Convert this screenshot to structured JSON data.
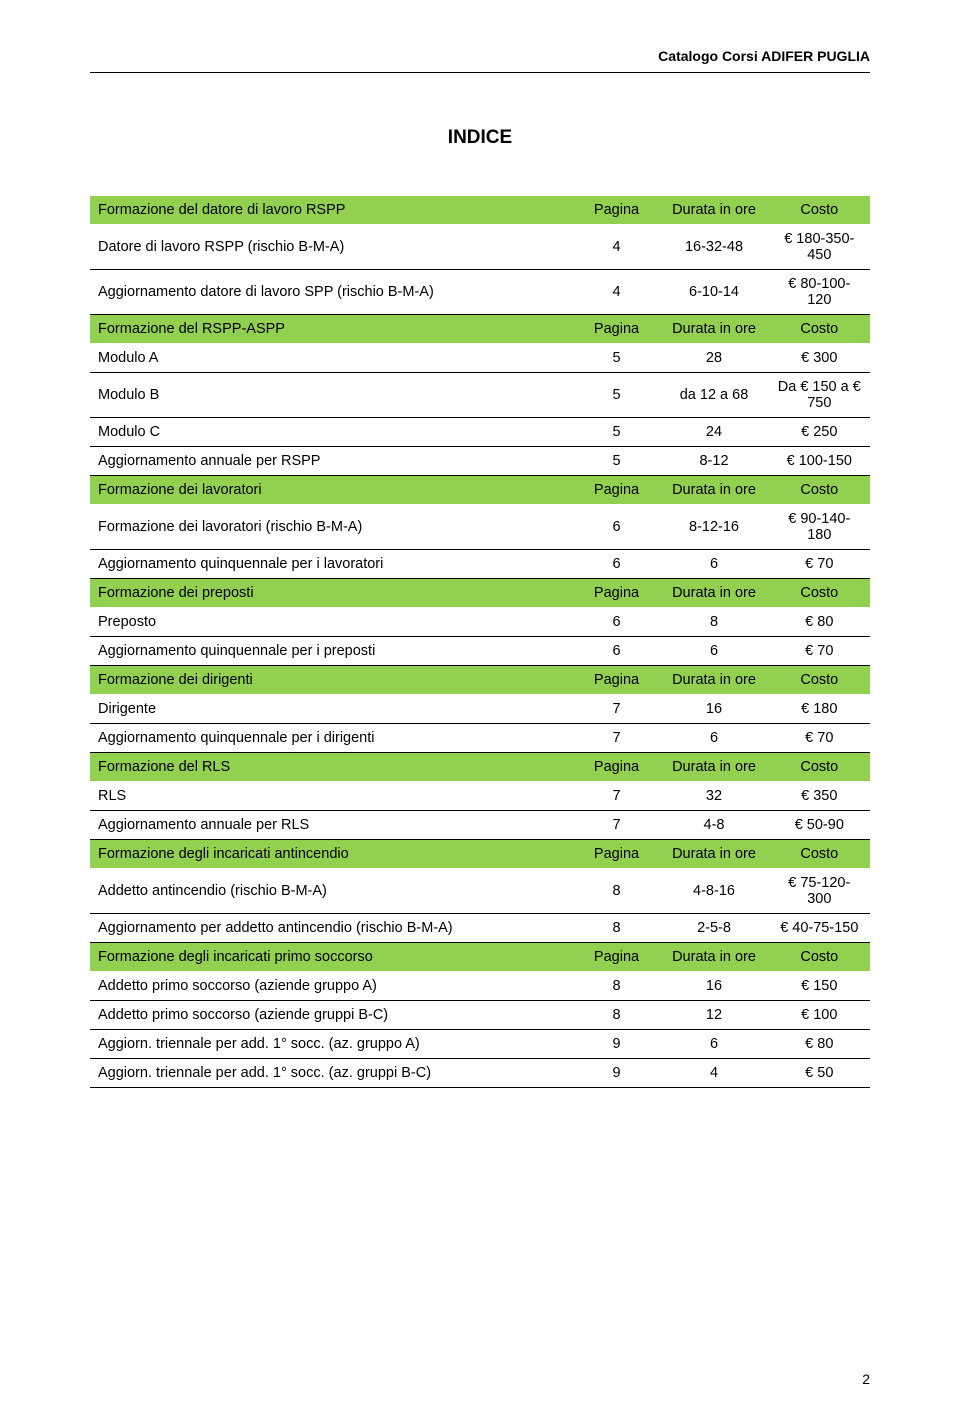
{
  "header": {
    "text": "Catalogo Corsi ADIFER PUGLIA"
  },
  "title": "INDICE",
  "columns": {
    "page": "Pagina",
    "duration": "Durata in ore",
    "cost": "Costo"
  },
  "sections": [
    {
      "title": "Formazione del datore di lavoro RSPP",
      "rows": [
        {
          "name": "Datore di lavoro RSPP (rischio B-M-A)",
          "page": "4",
          "duration": "16-32-48",
          "cost": "€ 180-350-450"
        },
        {
          "name": "Aggiornamento datore di lavoro SPP (rischio B-M-A)",
          "page": "4",
          "duration": "6-10-14",
          "cost": "€ 80-100-120"
        }
      ]
    },
    {
      "title": "Formazione del RSPP-ASPP",
      "rows": [
        {
          "name": "Modulo A",
          "page": "5",
          "duration": "28",
          "cost": "€ 300"
        },
        {
          "name": "Modulo B",
          "page": "5",
          "duration": "da 12 a 68",
          "cost": "Da € 150 a € 750"
        },
        {
          "name": "Modulo C",
          "page": "5",
          "duration": "24",
          "cost": "€ 250"
        },
        {
          "name": "Aggiornamento annuale per RSPP",
          "page": "5",
          "duration": "8-12",
          "cost": "€ 100-150"
        }
      ]
    },
    {
      "title": "Formazione dei lavoratori",
      "rows": [
        {
          "name": "Formazione dei lavoratori (rischio B-M-A)",
          "page": "6",
          "duration": "8-12-16",
          "cost": "€ 90-140-180"
        },
        {
          "name": "Aggiornamento quinquennale per i lavoratori",
          "page": "6",
          "duration": "6",
          "cost": "€ 70"
        }
      ]
    },
    {
      "title": "Formazione dei preposti",
      "rows": [
        {
          "name": "Preposto",
          "page": "6",
          "duration": "8",
          "cost": "€ 80"
        },
        {
          "name": "Aggiornamento quinquennale per i preposti",
          "page": "6",
          "duration": "6",
          "cost": "€ 70"
        }
      ]
    },
    {
      "title": "Formazione dei dirigenti",
      "rows": [
        {
          "name": "Dirigente",
          "page": "7",
          "duration": "16",
          "cost": "€ 180"
        },
        {
          "name": "Aggiornamento quinquennale per i dirigenti",
          "page": "7",
          "duration": "6",
          "cost": "€ 70"
        }
      ]
    },
    {
      "title": "Formazione del RLS",
      "rows": [
        {
          "name": "RLS",
          "page": "7",
          "duration": "32",
          "cost": "€ 350"
        },
        {
          "name": "Aggiornamento annuale per RLS",
          "page": "7",
          "duration": "4-8",
          "cost": "€ 50-90"
        }
      ]
    },
    {
      "title": "Formazione degli incaricati antincendio",
      "rows": [
        {
          "name": "Addetto antincendio (rischio B-M-A)",
          "page": "8",
          "duration": "4-8-16",
          "cost": "€ 75-120-300"
        },
        {
          "name": "Aggiornamento per addetto antincendio (rischio B-M-A)",
          "page": "8",
          "duration": "2-5-8",
          "cost": "€ 40-75-150"
        }
      ]
    },
    {
      "title": "Formazione degli incaricati primo soccorso",
      "rows": [
        {
          "name": "Addetto primo soccorso (aziende gruppo A)",
          "page": "8",
          "duration": "16",
          "cost": "€ 150"
        },
        {
          "name": "Addetto primo soccorso (aziende gruppi B-C)",
          "page": "8",
          "duration": "12",
          "cost": "€ 100"
        },
        {
          "name": "Aggiorn. triennale per add. 1° socc. (az. gruppo A)",
          "page": "9",
          "duration": "6",
          "cost": "€ 80"
        },
        {
          "name": "Aggiorn. triennale per add. 1° socc. (az. gruppi B-C)",
          "page": "9",
          "duration": "4",
          "cost": "€ 50"
        }
      ]
    }
  ],
  "page_number": "2",
  "styles": {
    "section_bg": "#92d050",
    "text_color": "#000000",
    "page_bg": "#ffffff",
    "border_color": "#000000",
    "font_family": "Arial",
    "title_fontsize": 19,
    "body_fontsize": 14.5,
    "header_fontsize": 14
  }
}
